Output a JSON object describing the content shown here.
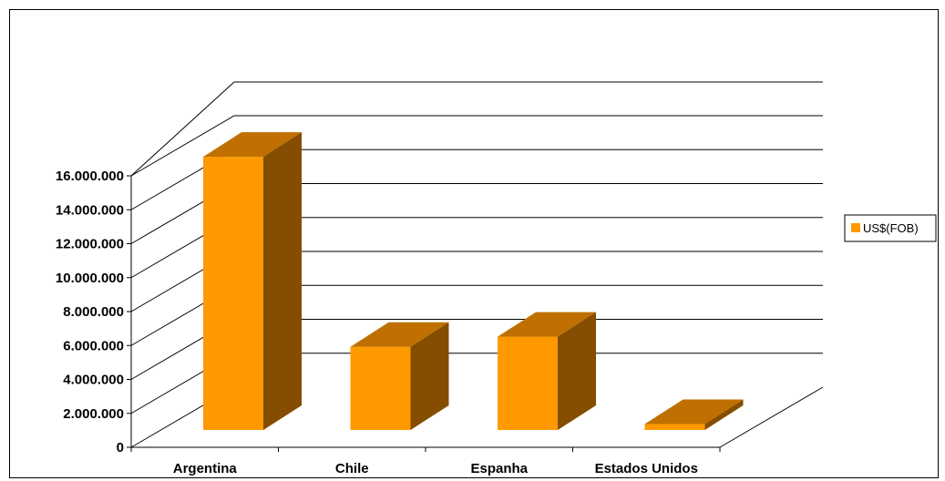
{
  "chart_data": {
    "type": "bar",
    "style": "3d-column",
    "categories": [
      "Argentina",
      "Chile",
      "Espanha",
      "Estados Unidos"
    ],
    "series": [
      {
        "name": "US$(FOB)",
        "values": [
          16100000,
          4900000,
          5500000,
          350000
        ]
      }
    ],
    "ylim": [
      0,
      16000000
    ],
    "yticks": [
      0,
      2000000,
      4000000,
      6000000,
      8000000,
      10000000,
      12000000,
      14000000,
      16000000
    ],
    "ytick_labels": [
      "0",
      "2.000.000",
      "4.000.000",
      "6.000.000",
      "8.000.000",
      "10.000.000",
      "12.000.000",
      "14.000.000",
      "16.000.000"
    ],
    "title": "",
    "xlabel": "",
    "ylabel": "",
    "grid": true,
    "legend_position": "right",
    "colors": {
      "front": "#FF9900",
      "top": "#C07000",
      "side": "#844D00",
      "grid": "#000000"
    }
  }
}
